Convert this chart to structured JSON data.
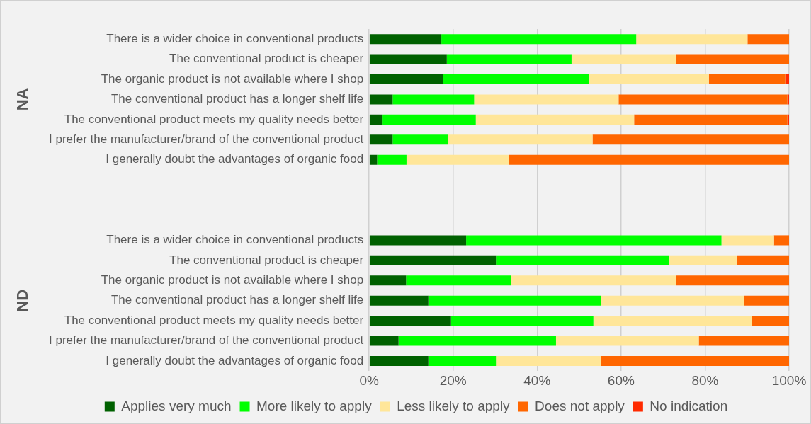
{
  "chart_data": {
    "type": "bar",
    "orientation": "horizontal",
    "stacked": true,
    "categories": [
      "There is a wider choice in conventional products",
      "The conventional product is cheaper",
      "The organic product is not available where I shop",
      "The conventional product has a longer shelf life",
      "The conventional product meets my quality needs better",
      "I prefer the manufacturer/brand of the conventional product",
      "I generally doubt the advantages of organic food",
      null,
      null,
      null,
      "There is a wider choice in conventional products",
      "The conventional product is cheaper",
      "The organic product is not available where I shop",
      "The conventional product has a longer shelf life",
      "The conventional product meets my quality needs better",
      "I prefer the manufacturer/brand of the conventional product",
      "I generally doubt the advantages of organic food"
    ],
    "series": [
      {
        "name": "Applies very much",
        "color": "#006100",
        "values": [
          17.2,
          18.5,
          17.6,
          5.6,
          3.2,
          5.6,
          1.9,
          null,
          null,
          null,
          23.1,
          30.2,
          8.8,
          14.1,
          19.5,
          7.0,
          14.1
        ]
      },
      {
        "name": "More likely to apply",
        "color": "#00ff00",
        "values": [
          46.4,
          29.7,
          34.8,
          19.4,
          22.2,
          13.2,
          7.0,
          null,
          null,
          null,
          60.8,
          41.2,
          25.0,
          41.2,
          33.9,
          37.5,
          16.1
        ]
      },
      {
        "name": "Less likely to apply",
        "color": "#ffe699",
        "values": [
          26.5,
          24.9,
          28.5,
          34.4,
          37.7,
          34.4,
          24.4,
          null,
          null,
          null,
          12.5,
          16.1,
          39.3,
          34.0,
          37.7,
          34.0,
          25.1
        ]
      },
      {
        "name": "Does not apply",
        "color": "#ff6600",
        "values": [
          9.9,
          26.9,
          18.2,
          40.2,
          36.5,
          46.8,
          66.7,
          null,
          null,
          null,
          3.6,
          12.5,
          26.9,
          10.7,
          8.9,
          21.5,
          44.7
        ]
      },
      {
        "name": "No indication",
        "color": "#ff2a00",
        "values": [
          0,
          0,
          0.9,
          0.4,
          0.4,
          0,
          0,
          null,
          null,
          null,
          0,
          0,
          0,
          0,
          0,
          0,
          0
        ]
      }
    ],
    "xlim": [
      0,
      100
    ],
    "xticks": [
      {
        "value": 0,
        "label": "0%"
      },
      {
        "value": 20,
        "label": "20%"
      },
      {
        "value": 40,
        "label": "40%"
      },
      {
        "value": 60,
        "label": "60%"
      },
      {
        "value": 80,
        "label": "80%"
      },
      {
        "value": 100,
        "label": "100%"
      }
    ],
    "annotations": [
      "NA",
      "ND"
    ],
    "grid": "x",
    "legend": "bottom"
  }
}
